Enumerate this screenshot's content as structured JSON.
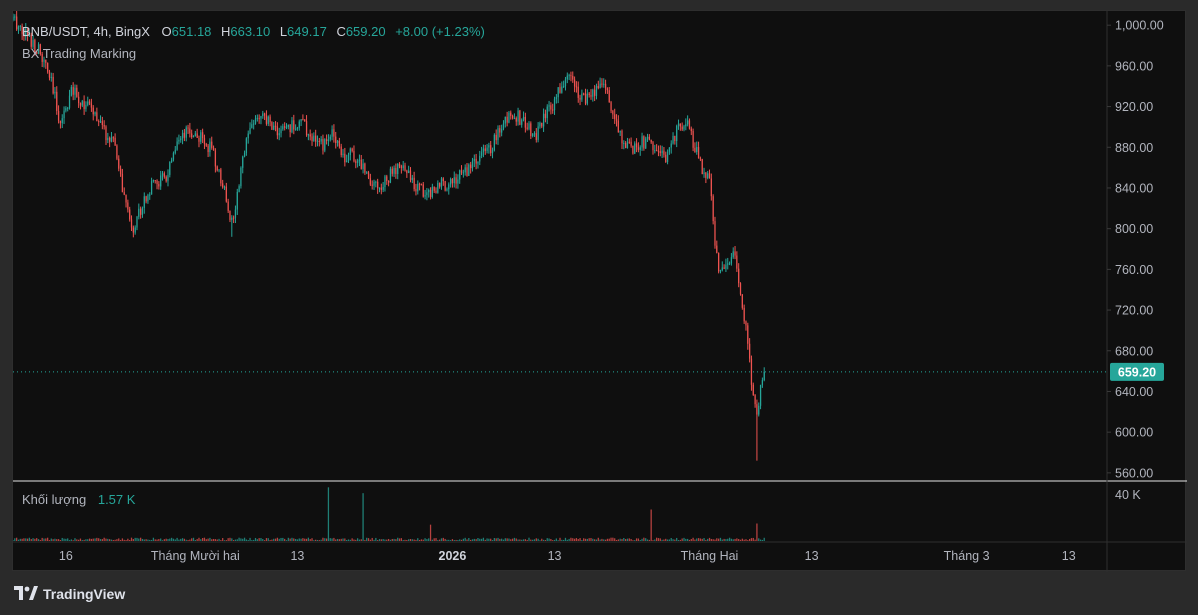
{
  "legend": {
    "symbol": "BNB/USDT, 4h, BingX",
    "open_label": "O",
    "open": "651.18",
    "high_label": "H",
    "high": "663.10",
    "low_label": "L",
    "low": "649.17",
    "close_label": "C",
    "close": "659.20",
    "change": "+8.00 (+1.23%)"
  },
  "indicator_label": "BX Trading Marking",
  "volume_legend": {
    "label": "Khối lượng",
    "value": "1.57 K"
  },
  "colors": {
    "up": "#26a69a",
    "down": "#ef5350",
    "background": "#0f0f0f",
    "text": "#b2b5be",
    "price_tag": "#26a69a"
  },
  "footer": {
    "brand": "TradingView",
    "icon": "tradingview-logo-icon"
  },
  "chart_data": {
    "type": "line",
    "title": "BNB/USDT, 4h, BingX",
    "xlabel": "",
    "ylabel": "",
    "ylim": [
      552,
      1010
    ],
    "y_ticks": [
      "1,000.00",
      "960.00",
      "920.00",
      "880.00",
      "840.00",
      "800.00",
      "760.00",
      "720.00",
      "680.00",
      "640.00",
      "600.00",
      "560.00"
    ],
    "x_ticks": [
      {
        "label": "16",
        "bold": false,
        "idx": 29
      },
      {
        "label": "Tháng Mười hai",
        "bold": false,
        "idx": 100
      },
      {
        "label": "13",
        "bold": false,
        "idx": 156
      },
      {
        "label": "2026",
        "bold": true,
        "idx": 241
      },
      {
        "label": "13",
        "bold": false,
        "idx": 297
      },
      {
        "label": "Tháng Hai",
        "bold": false,
        "idx": 382
      },
      {
        "label": "13",
        "bold": false,
        "idx": 438
      },
      {
        "label": "Tháng 3",
        "bold": false,
        "idx": 523
      },
      {
        "label": "13",
        "bold": false,
        "idx": 579
      }
    ],
    "x_index_range": [
      0,
      600
    ],
    "last_price": "659.20",
    "last_price_value": 659.2,
    "volume_axis_tick": "40 K",
    "volume_axis_value": 40000,
    "volume_range": [
      0,
      48000
    ],
    "series": [
      {
        "name": "BNB/USDT",
        "anchors": [
          [
            0,
            1005
          ],
          [
            6,
            995
          ],
          [
            14,
            975
          ],
          [
            20,
            950
          ],
          [
            26,
            905
          ],
          [
            32,
            935
          ],
          [
            38,
            925
          ],
          [
            44,
            915
          ],
          [
            50,
            895
          ],
          [
            56,
            880
          ],
          [
            62,
            820
          ],
          [
            66,
            800
          ],
          [
            72,
            830
          ],
          [
            78,
            845
          ],
          [
            84,
            850
          ],
          [
            90,
            880
          ],
          [
            96,
            895
          ],
          [
            102,
            890
          ],
          [
            108,
            880
          ],
          [
            112,
            860
          ],
          [
            116,
            840
          ],
          [
            120,
            805
          ],
          [
            124,
            840
          ],
          [
            128,
            895
          ],
          [
            134,
            910
          ],
          [
            140,
            905
          ],
          [
            146,
            895
          ],
          [
            152,
            900
          ],
          [
            158,
            905
          ],
          [
            164,
            890
          ],
          [
            170,
            880
          ],
          [
            176,
            895
          ],
          [
            182,
            870
          ],
          [
            186,
            875
          ],
          [
            190,
            865
          ],
          [
            196,
            850
          ],
          [
            202,
            840
          ],
          [
            208,
            855
          ],
          [
            214,
            860
          ],
          [
            220,
            845
          ],
          [
            226,
            835
          ],
          [
            232,
            840
          ],
          [
            238,
            845
          ],
          [
            244,
            850
          ],
          [
            250,
            860
          ],
          [
            256,
            870
          ],
          [
            262,
            880
          ],
          [
            268,
            900
          ],
          [
            274,
            915
          ],
          [
            280,
            905
          ],
          [
            286,
            890
          ],
          [
            292,
            910
          ],
          [
            298,
            930
          ],
          [
            302,
            945
          ],
          [
            306,
            950
          ],
          [
            310,
            935
          ],
          [
            316,
            925
          ],
          [
            320,
            940
          ],
          [
            324,
            945
          ],
          [
            328,
            920
          ],
          [
            332,
            900
          ],
          [
            336,
            880
          ],
          [
            340,
            880
          ],
          [
            346,
            885
          ],
          [
            352,
            880
          ],
          [
            356,
            870
          ],
          [
            360,
            875
          ],
          [
            364,
            895
          ],
          [
            366,
            905
          ],
          [
            370,
            900
          ],
          [
            374,
            880
          ],
          [
            378,
            860
          ],
          [
            382,
            845
          ],
          [
            384,
            805
          ],
          [
            386,
            770
          ],
          [
            388,
            755
          ],
          [
            390,
            760
          ],
          [
            392,
            770
          ],
          [
            394,
            775
          ],
          [
            396,
            770
          ],
          [
            398,
            745
          ],
          [
            400,
            720
          ],
          [
            402,
            700
          ],
          [
            404,
            670
          ],
          [
            406,
            630
          ],
          [
            408,
            615
          ],
          [
            410,
            640
          ],
          [
            412,
            659.2
          ]
        ],
        "volume_spikes": [
          [
            173,
            46000
          ],
          [
            192,
            41000
          ],
          [
            229,
            14000
          ],
          [
            350,
            27000
          ],
          [
            408,
            15000
          ]
        ],
        "volume_base": 2200
      }
    ]
  }
}
